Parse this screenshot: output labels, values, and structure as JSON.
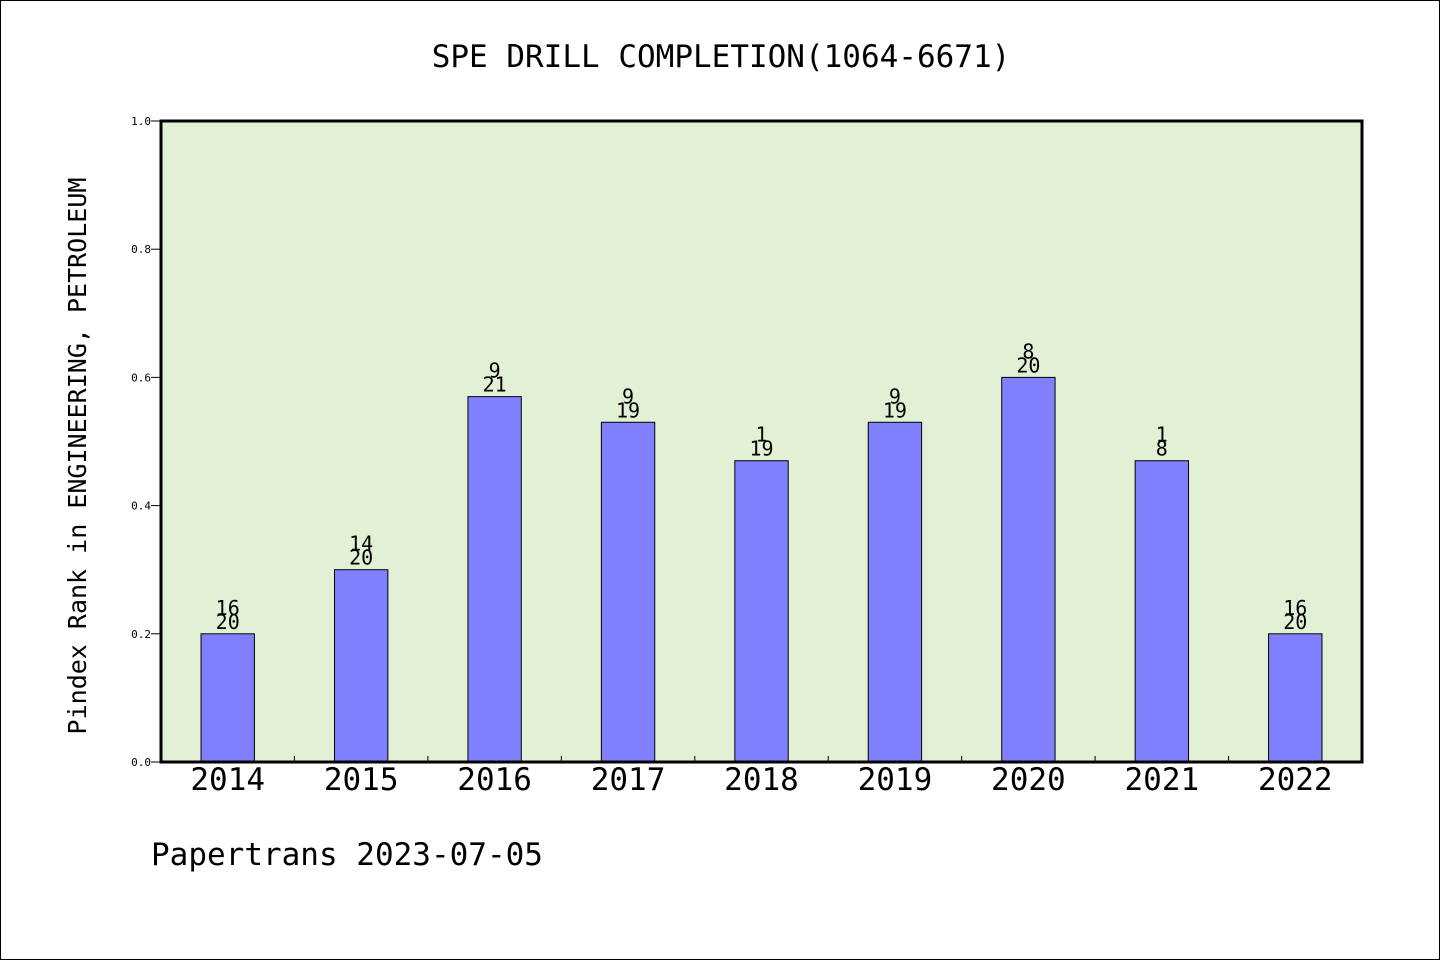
{
  "chart_data": {
    "type": "bar",
    "title": "SPE DRILL COMPLETION(1064-6671)",
    "ylabel": "Pindex Rank in ENGINEERING, PETROLEUM",
    "xlabel": "",
    "categories": [
      "2014",
      "2015",
      "2016",
      "2017",
      "2018",
      "2019",
      "2020",
      "2021",
      "2022"
    ],
    "values": [
      0.2,
      0.3,
      0.57,
      0.53,
      0.47,
      0.53,
      0.6,
      0.47,
      0.2
    ],
    "rank_labels": [
      "16",
      "14",
      "9",
      "9",
      "1",
      "9",
      "8",
      "1",
      "16"
    ],
    "count_labels": [
      "20",
      "20",
      "21",
      "19",
      "19",
      "19",
      "20",
      "8",
      "20"
    ],
    "ylim": [
      0,
      1.0
    ],
    "yticks": [
      0.0,
      0.2,
      0.4,
      0.6,
      0.8,
      1.0
    ],
    "ytick_labels": [
      "0.0",
      "0.2",
      "0.4",
      "0.6",
      "0.8",
      "1.0"
    ],
    "grid": false,
    "legend": "none",
    "colors": {
      "plot_background": "#e2f0d6",
      "bar_fill": "#8080ff",
      "bar_edge": "#000000"
    }
  },
  "footer": {
    "text": "Papertrans 2023-07-05"
  }
}
